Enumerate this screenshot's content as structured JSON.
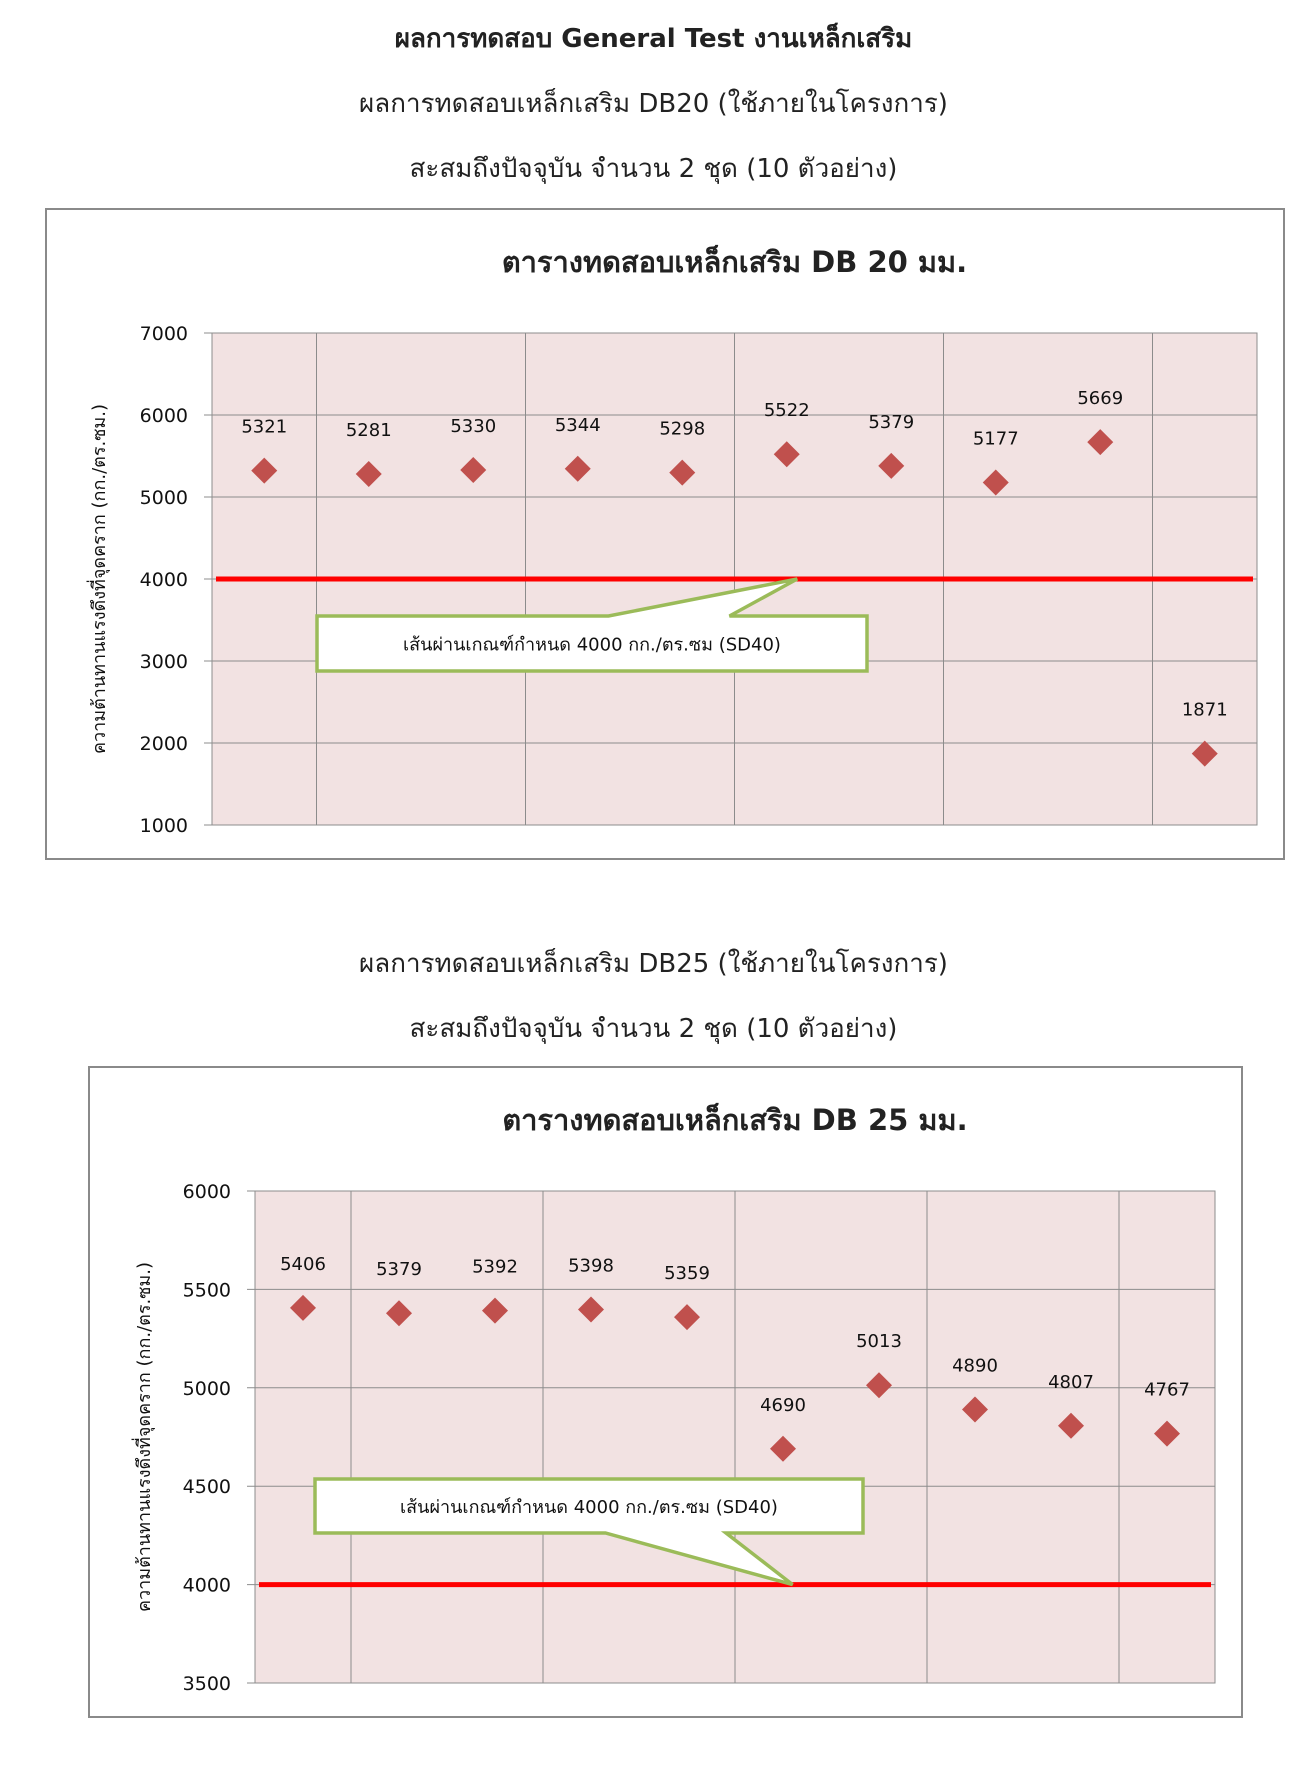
{
  "page": {
    "header_title": "ผลการทดสอบ General Test งานเหล็กเสริม",
    "db20_subtitle": "ผลการทดสอบเหล็กเสริม DB20 (ใช้ภายในโครงการ)",
    "db20_note": "สะสมถึงปัจจุบัน จำนวน 2 ชุด (10 ตัวอย่าง)",
    "db25_subtitle": "ผลการทดสอบเหล็กเสริม DB25 (ใช้ภายในโครงการ)",
    "db25_note": "สะสมถึงปัจจุบัน จำนวน 2 ชุด (10 ตัวอย่าง)"
  },
  "colors": {
    "plot_bg": "#f2e2e2",
    "grid": "#8c8c8c",
    "marker": "#c0504d",
    "threshold": "#ff0000",
    "callout_border": "#9bbb59"
  },
  "chart_data": [
    {
      "type": "scatter",
      "title": "ตารางทดสอบเหล็กเสริม DB 20 มม.",
      "ylabel": "ความต้านทานแรงดึงที่จุดคราก (กก./ตร.ซม.)",
      "ylim": [
        1000,
        7000
      ],
      "yticks": [
        1000,
        2000,
        3000,
        4000,
        5000,
        6000,
        7000
      ],
      "x": [
        1,
        2,
        3,
        4,
        5,
        6,
        7,
        8,
        9,
        10
      ],
      "values": [
        5321,
        5281,
        5330,
        5344,
        5298,
        5522,
        5379,
        5177,
        5669,
        1871
      ],
      "labels": [
        "5321",
        "5281",
        "5330",
        "5344",
        "5298",
        "5522",
        "5379",
        "5177",
        "5669",
        "1871"
      ],
      "threshold": 4000,
      "callout": "เส้นผ่านเกณฑ์กำหนด 4000 กก./ตร.ซม (SD40)",
      "grid": true,
      "legend": "none"
    },
    {
      "type": "scatter",
      "title": "ตารางทดสอบเหล็กเสริม DB 25 มม.",
      "ylabel": "ความต้านทานแรงดึงที่จุดคราก (กก./ตร.ซม.)",
      "ylim": [
        3500,
        6000
      ],
      "yticks": [
        3500,
        4000,
        4500,
        5000,
        5500,
        6000
      ],
      "x": [
        1,
        2,
        3,
        4,
        5,
        6,
        7,
        8,
        9,
        10
      ],
      "values": [
        5406,
        5379,
        5392,
        5398,
        5359,
        4690,
        5013,
        4890,
        4807,
        4767
      ],
      "labels": [
        "5406",
        "5379",
        "5392",
        "5398",
        "5359",
        "4690",
        "5013",
        "4890",
        "4807",
        "4767"
      ],
      "threshold": 4000,
      "callout": "เส้นผ่านเกณฑ์กำหนด 4000 กก./ตร.ซม (SD40)",
      "grid": true,
      "legend": "none"
    }
  ]
}
